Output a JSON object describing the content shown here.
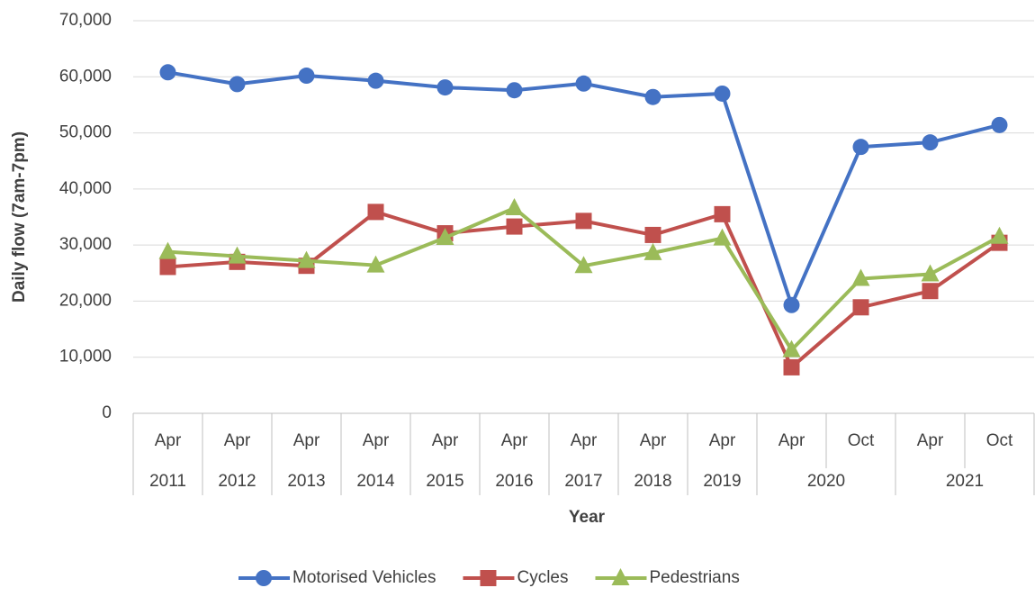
{
  "chart_data": {
    "type": "line",
    "y_label": "Daily flow (7am-7pm)",
    "x_label": "Year",
    "category_groups": [
      {
        "label": "2011",
        "categories": [
          "Apr"
        ]
      },
      {
        "label": "2012",
        "categories": [
          "Apr"
        ]
      },
      {
        "label": "2013",
        "categories": [
          "Apr"
        ]
      },
      {
        "label": "2014",
        "categories": [
          "Apr"
        ]
      },
      {
        "label": "2015",
        "categories": [
          "Apr"
        ]
      },
      {
        "label": "2016",
        "categories": [
          "Apr"
        ]
      },
      {
        "label": "2017",
        "categories": [
          "Apr"
        ]
      },
      {
        "label": "2018",
        "categories": [
          "Apr"
        ]
      },
      {
        "label": "2019",
        "categories": [
          "Apr"
        ]
      },
      {
        "label": "2020",
        "categories": [
          "Apr",
          "Oct"
        ]
      },
      {
        "label": "2021",
        "categories": [
          "Apr",
          "Oct"
        ]
      }
    ],
    "series": [
      {
        "name": "Motorised Vehicles",
        "color": "#4472c4",
        "marker": "circle",
        "values": [
          60800,
          58700,
          60200,
          59300,
          58100,
          57600,
          58800,
          56400,
          57000,
          19300,
          47500,
          48300,
          51400
        ]
      },
      {
        "name": "Cycles",
        "color": "#c0504d",
        "marker": "square",
        "values": [
          26100,
          27000,
          26300,
          35900,
          32100,
          33300,
          34300,
          31800,
          35500,
          8200,
          18900,
          21800,
          30400
        ]
      },
      {
        "name": "Pedestrians",
        "color": "#9bbb59",
        "marker": "triangle",
        "values": [
          28800,
          28000,
          27200,
          26400,
          31300,
          36600,
          26300,
          28600,
          31200,
          11300,
          24000,
          24800,
          31500
        ]
      }
    ],
    "ylim": [
      0,
      70000
    ],
    "yticks": [
      0,
      {
        "value": 10000,
        "label": "10,000"
      },
      {
        "value": 20000,
        "label": "20,000"
      },
      {
        "value": 30000,
        "label": "30,000"
      },
      {
        "value": 40000,
        "label": "40,000"
      },
      {
        "value": 50000,
        "label": "50,000"
      },
      {
        "value": 60000,
        "label": "60,000"
      },
      {
        "value": 70000,
        "label": "70,000"
      }
    ],
    "grid": true,
    "legend": "bottom"
  }
}
